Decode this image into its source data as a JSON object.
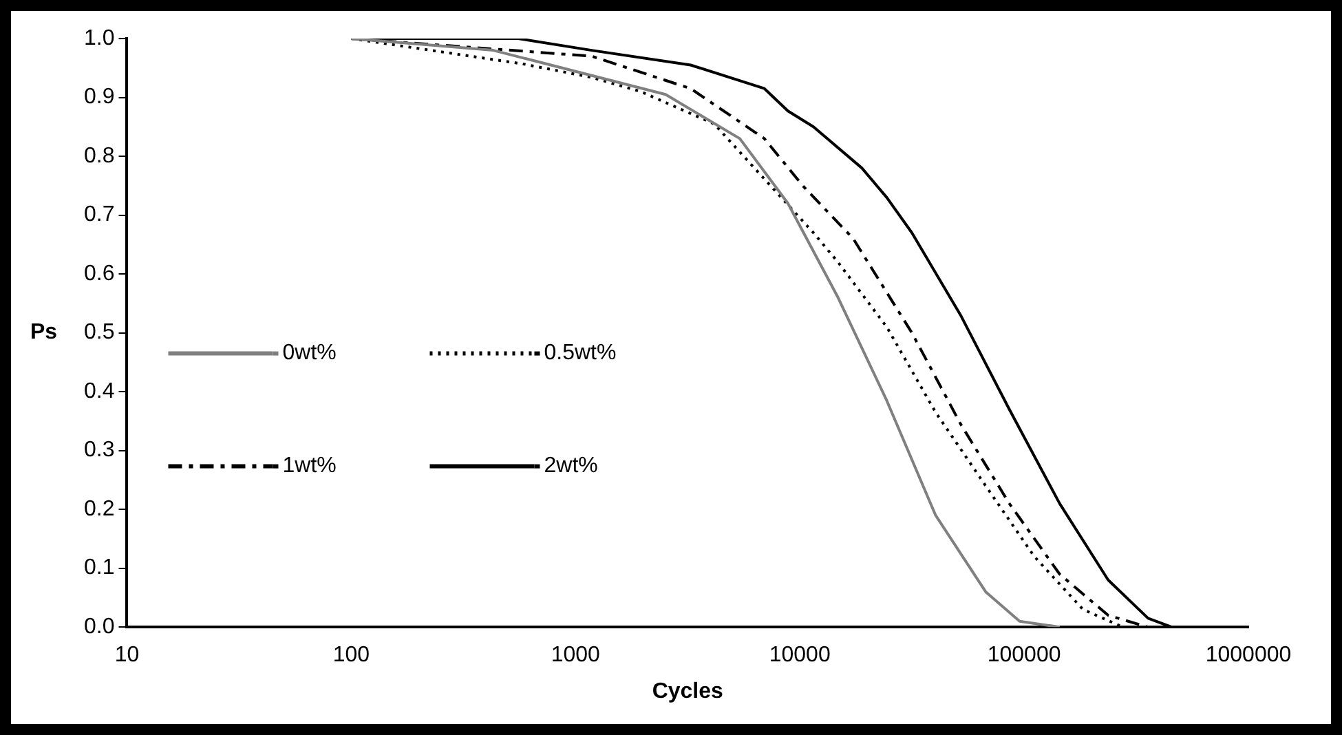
{
  "chart_data": {
    "type": "line",
    "xlabel": "Cycles",
    "ylabel": "Ps",
    "log": "x",
    "grid": false,
    "legend": "left",
    "marker": "none",
    "xlim": [
      10,
      1000000
    ],
    "xticks": [
      10,
      100,
      1000,
      10000,
      100000,
      1000000
    ],
    "ylim": [
      0,
      1
    ],
    "yticks": [
      {
        "value": 0,
        "label": "0.0"
      },
      {
        "value": 0.1,
        "label": "0.1"
      },
      {
        "value": 0.2,
        "label": "0.2"
      },
      {
        "value": 0.3,
        "label": "0.3"
      },
      {
        "value": 0.4,
        "label": "0.4"
      },
      {
        "value": 0.5,
        "label": "0.5"
      },
      {
        "value": 0.6,
        "label": "0.6"
      },
      {
        "value": 0.7,
        "label": "0.7"
      },
      {
        "value": 0.8,
        "label": "0.8"
      },
      {
        "value": 0.9,
        "label": "0.9"
      },
      {
        "value": 1,
        "label": "1.0"
      }
    ],
    "series": [
      {
        "name": "0wt%",
        "color": "#808080",
        "line_style": "solid",
        "x": [
          100,
          430,
          2520,
          5400,
          8850,
          14800,
          24400,
          40300,
          67400,
          95500,
          144000
        ],
        "values": [
          1.0,
          0.98,
          0.905,
          0.83,
          0.72,
          0.56,
          0.385,
          0.19,
          0.06,
          0.01,
          0
        ]
      },
      {
        "name": "0.5wt%",
        "color": "#000000",
        "line_style": "dotted",
        "x": [
          100,
          580,
          1180,
          1950,
          4150,
          11500,
          14800,
          24400,
          40300,
          67400,
          111000,
          183000,
          276000
        ],
        "values": [
          1.0,
          0.957,
          0.934,
          0.91,
          0.855,
          0.67,
          0.62,
          0.51,
          0.365,
          0.24,
          0.12,
          0.03,
          0
        ]
      },
      {
        "name": "1wt%",
        "color": "#000000",
        "line_style": "dashed",
        "x": [
          100,
          1180,
          3260,
          6950,
          10300,
          17300,
          31600,
          52100,
          85900,
          144000,
          237000,
          357000
        ],
        "values": [
          1.0,
          0.97,
          0.915,
          0.83,
          0.75,
          0.66,
          0.5,
          0.345,
          0.21,
          0.09,
          0.02,
          0
        ]
      },
      {
        "name": "2wt%",
        "color": "#000000",
        "line_style": "solid",
        "x": [
          100,
          554,
          1180,
          3260,
          6950,
          8850,
          11500,
          18900,
          24400,
          31600,
          52100,
          85900,
          144000,
          237000,
          357000,
          455000
        ],
        "values": [
          1.0,
          1.0,
          0.98,
          0.955,
          0.915,
          0.877,
          0.85,
          0.78,
          0.73,
          0.67,
          0.53,
          0.37,
          0.21,
          0.08,
          0.015,
          0
        ]
      }
    ]
  }
}
